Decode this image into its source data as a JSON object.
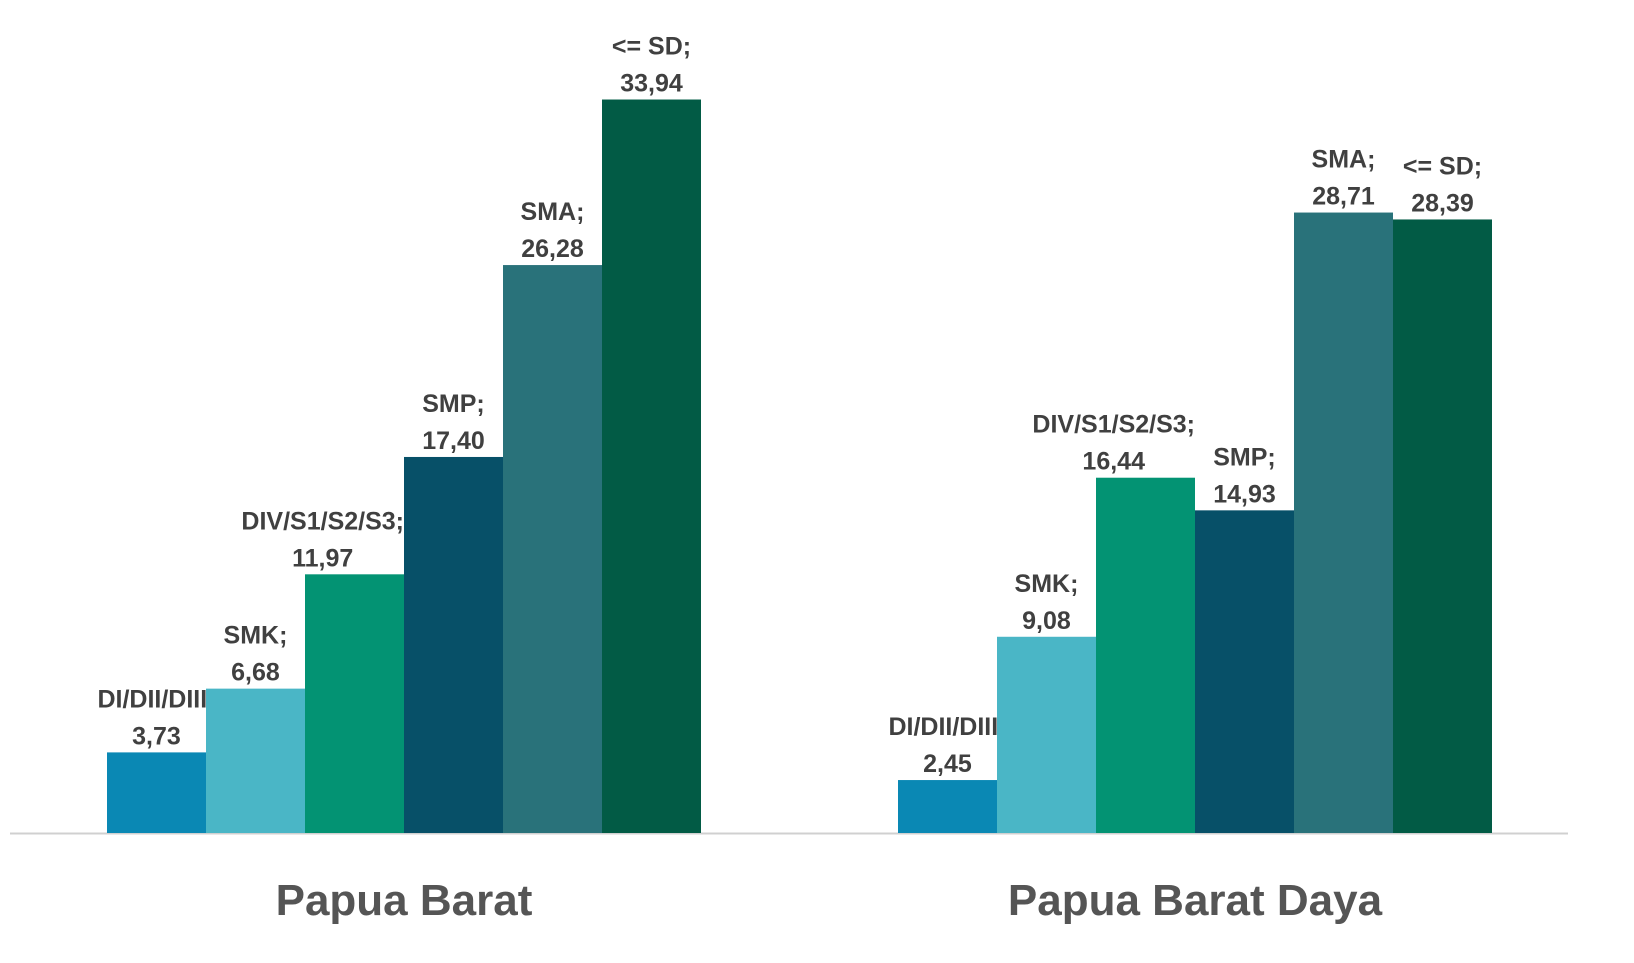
{
  "chart_data": {
    "type": "bar",
    "categories": [
      "Papua Barat",
      "Papua Barat Daya"
    ],
    "series": [
      {
        "name": "DI/DII/DIII",
        "color": "#0a88b4",
        "values": [
          3.73,
          2.45
        ],
        "value_labels": [
          "DI/DII/DIII; 3,73",
          "DI/DII/DIII; 2,45"
        ]
      },
      {
        "name": "SMK",
        "color": "#4ab6c6",
        "values": [
          6.68,
          9.08
        ],
        "value_labels": [
          "SMK; 6,68",
          "SMK; 9,08"
        ]
      },
      {
        "name": "DIV/S1/S2/S3",
        "color": "#039373",
        "values": [
          11.97,
          16.44
        ],
        "value_labels": [
          "DIV/S1/S2/S3; 11,97",
          "DIV/S1/S2/S3; 16,44"
        ]
      },
      {
        "name": "SMP",
        "color": "#075068",
        "values": [
          17.4,
          14.93
        ],
        "value_labels": [
          "SMP; 17,40",
          "SMP; 14,93"
        ]
      },
      {
        "name": "SMA",
        "color": "#29727a",
        "values": [
          26.28,
          28.71
        ],
        "value_labels": [
          "SMA; 26,28",
          "SMA; 28,71"
        ]
      },
      {
        "name": "<= SD",
        "color": "#025b45",
        "values": [
          33.94,
          28.39
        ],
        "value_labels": [
          "<= SD; 33,94",
          "<= SD; 28,39"
        ]
      }
    ],
    "ylim": [
      0,
      36
    ]
  }
}
